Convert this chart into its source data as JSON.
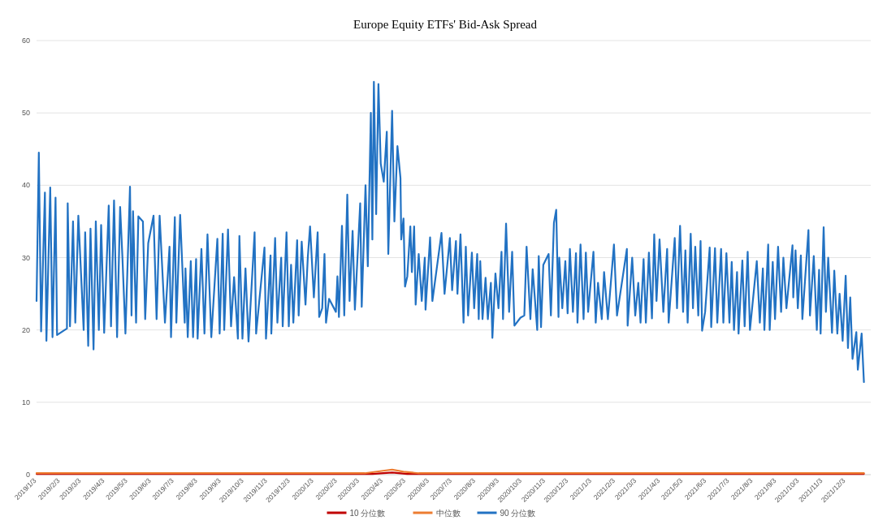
{
  "chart_data": {
    "type": "line",
    "title": "Europe Equity ETFs' Bid-Ask Spread",
    "xlim": [
      "2019-01-03",
      "2022-01-05"
    ],
    "xticks": [
      {
        "value": "2019-01-03",
        "label": "2019/1/3"
      },
      {
        "value": "2019-02-03",
        "label": "2019/2/3"
      },
      {
        "value": "2019-03-03",
        "label": "2019/3/3"
      },
      {
        "value": "2019-04-03",
        "label": "2019/4/3"
      },
      {
        "value": "2019-05-03",
        "label": "2019/5/3"
      },
      {
        "value": "2019-06-03",
        "label": "2019/6/3"
      },
      {
        "value": "2019-07-03",
        "label": "2019/7/3"
      },
      {
        "value": "2019-08-03",
        "label": "2019/8/3"
      },
      {
        "value": "2019-09-03",
        "label": "2019/9/3"
      },
      {
        "value": "2019-10-03",
        "label": "2019/10/3"
      },
      {
        "value": "2019-11-03",
        "label": "2019/11/3"
      },
      {
        "value": "2019-12-03",
        "label": "2019/12/3"
      },
      {
        "value": "2020-01-03",
        "label": "2020/1/3"
      },
      {
        "value": "2020-02-03",
        "label": "2020/2/3"
      },
      {
        "value": "2020-03-03",
        "label": "2020/3/3"
      },
      {
        "value": "2020-04-03",
        "label": "2020/4/3"
      },
      {
        "value": "2020-05-03",
        "label": "2020/5/3"
      },
      {
        "value": "2020-06-03",
        "label": "2020/6/3"
      },
      {
        "value": "2020-07-03",
        "label": "2020/7/3"
      },
      {
        "value": "2020-08-03",
        "label": "2020/8/3"
      },
      {
        "value": "2020-09-03",
        "label": "2020/9/3"
      },
      {
        "value": "2020-10-03",
        "label": "2020/10/3"
      },
      {
        "value": "2020-11-03",
        "label": "2020/11/3"
      },
      {
        "value": "2020-12-03",
        "label": "2020/12/3"
      },
      {
        "value": "2021-01-03",
        "label": "2021/1/3"
      },
      {
        "value": "2021-02-03",
        "label": "2021/2/3"
      },
      {
        "value": "2021-03-03",
        "label": "2021/3/3"
      },
      {
        "value": "2021-04-03",
        "label": "2021/4/3"
      },
      {
        "value": "2021-05-03",
        "label": "2021/5/3"
      },
      {
        "value": "2021-06-03",
        "label": "2021/6/3"
      },
      {
        "value": "2021-07-03",
        "label": "2021/7/3"
      },
      {
        "value": "2021-08-03",
        "label": "2021/8/3"
      },
      {
        "value": "2021-09-03",
        "label": "2021/9/3"
      },
      {
        "value": "2021-10-03",
        "label": "2021/10/3"
      },
      {
        "value": "2021-11-03",
        "label": "2021/11/3"
      },
      {
        "value": "2021-12-03",
        "label": "2021/12/3"
      }
    ],
    "ylim": [
      0,
      60
    ],
    "yticks": [
      0,
      10,
      20,
      30,
      40,
      50,
      60
    ],
    "grid": "y",
    "legend": "bottom",
    "series": [
      {
        "name": "10 分位數",
        "color": "#c00000",
        "x": [
          "2019-01-03",
          "2020-03-20",
          "2020-04-15",
          "2020-05-05",
          "2021-12-27"
        ],
        "values": [
          0.1,
          0.1,
          0.3,
          0.1,
          0.1
        ]
      },
      {
        "name": "中位數",
        "color": "#ed7d31",
        "x": [
          "2019-01-03",
          "2020-03-10",
          "2020-04-15",
          "2020-04-30",
          "2020-05-20",
          "2021-12-27"
        ],
        "values": [
          0.2,
          0.2,
          0.7,
          0.4,
          0.2,
          0.2
        ]
      },
      {
        "name": "90 分位數",
        "color": "#2272c3",
        "x": [
          "2019-01-03",
          "2019-01-06",
          "2019-01-09",
          "2019-01-14",
          "2019-01-16",
          "2019-01-21",
          "2019-01-24",
          "2019-01-28",
          "2019-01-30",
          "2019-02-12",
          "2019-02-13",
          "2019-02-16",
          "2019-02-20",
          "2019-02-23",
          "2019-02-27",
          "2019-03-06",
          "2019-03-08",
          "2019-03-12",
          "2019-03-15",
          "2019-03-19",
          "2019-03-22",
          "2019-03-26",
          "2019-03-29",
          "2019-04-02",
          "2019-04-08",
          "2019-04-11",
          "2019-04-15",
          "2019-04-19",
          "2019-04-23",
          "2019-04-26",
          "2019-04-30",
          "2019-05-06",
          "2019-05-08",
          "2019-05-10",
          "2019-05-14",
          "2019-05-17",
          "2019-05-23",
          "2019-05-26",
          "2019-05-30",
          "2019-06-06",
          "2019-06-10",
          "2019-06-14",
          "2019-06-21",
          "2019-06-27",
          "2019-06-29",
          "2019-07-04",
          "2019-07-06",
          "2019-07-11",
          "2019-07-17",
          "2019-07-18",
          "2019-07-21",
          "2019-07-25",
          "2019-07-28",
          "2019-08-01",
          "2019-08-03",
          "2019-08-08",
          "2019-08-12",
          "2019-08-16",
          "2019-08-21",
          "2019-08-29",
          "2019-09-01",
          "2019-09-05",
          "2019-09-07",
          "2019-09-12",
          "2019-09-16",
          "2019-09-20",
          "2019-09-25",
          "2019-09-27",
          "2019-10-01",
          "2019-10-05",
          "2019-10-09",
          "2019-10-17",
          "2019-10-19",
          "2019-10-30",
          "2019-11-01",
          "2019-11-07",
          "2019-11-08",
          "2019-11-13",
          "2019-11-16",
          "2019-11-21",
          "2019-11-23",
          "2019-11-28",
          "2019-12-01",
          "2019-12-04",
          "2019-12-07",
          "2019-12-12",
          "2019-12-14",
          "2019-12-18",
          "2019-12-23",
          "2019-12-26",
          "2019-12-29",
          "2020-01-03",
          "2020-01-08",
          "2020-01-10",
          "2020-01-14",
          "2020-01-17",
          "2020-01-19",
          "2020-01-23",
          "2020-02-01",
          "2020-02-03",
          "2020-02-05",
          "2020-02-09",
          "2020-02-12",
          "2020-02-16",
          "2020-02-19",
          "2020-02-23",
          "2020-02-26",
          "2020-03-04",
          "2020-03-06",
          "2020-03-11",
          "2020-03-14",
          "2020-03-18",
          "2020-03-20",
          "2020-03-22",
          "2020-03-25",
          "2020-03-28",
          "2020-03-31",
          "2020-04-04",
          "2020-04-08",
          "2020-04-10",
          "2020-04-15",
          "2020-04-18",
          "2020-04-22",
          "2020-04-26",
          "2020-04-27",
          "2020-04-30",
          "2020-05-02",
          "2020-05-05",
          "2020-05-09",
          "2020-05-11",
          "2020-05-14",
          "2020-05-16",
          "2020-05-20",
          "2020-05-24",
          "2020-05-28",
          "2020-05-29",
          "2020-06-04",
          "2020-06-07",
          "2020-06-19",
          "2020-06-23",
          "2020-06-30",
          "2020-07-03",
          "2020-07-08",
          "2020-07-10",
          "2020-07-14",
          "2020-07-18",
          "2020-07-21",
          "2020-07-24",
          "2020-07-29",
          "2020-08-01",
          "2020-08-05",
          "2020-08-07",
          "2020-08-09",
          "2020-08-12",
          "2020-08-16",
          "2020-08-19",
          "2020-08-23",
          "2020-08-25",
          "2020-08-29",
          "2020-09-02",
          "2020-09-06",
          "2020-09-08",
          "2020-09-12",
          "2020-09-16",
          "2020-09-20",
          "2020-09-23",
          "2020-10-01",
          "2020-10-06",
          "2020-10-09",
          "2020-10-14",
          "2020-10-17",
          "2020-10-23",
          "2020-10-25",
          "2020-10-28",
          "2020-10-31",
          "2020-11-07",
          "2020-11-10",
          "2020-11-14",
          "2020-11-17",
          "2020-11-20",
          "2020-11-21",
          "2020-11-25",
          "2020-11-29",
          "2020-12-02",
          "2020-12-05",
          "2020-12-09",
          "2020-12-13",
          "2020-12-15",
          "2020-12-19",
          "2020-12-23",
          "2020-12-26",
          "2020-12-29",
          "2021-01-05",
          "2021-01-08",
          "2021-01-11",
          "2021-01-16",
          "2021-01-19",
          "2021-01-24",
          "2021-02-01",
          "2021-02-05",
          "2021-02-18",
          "2021-02-19",
          "2021-02-25",
          "2021-03-01",
          "2021-03-05",
          "2021-03-08",
          "2021-03-12",
          "2021-03-15",
          "2021-03-19",
          "2021-03-23",
          "2021-03-26",
          "2021-03-29",
          "2021-04-02",
          "2021-04-07",
          "2021-04-12",
          "2021-04-14",
          "2021-04-22",
          "2021-04-25",
          "2021-04-29",
          "2021-05-03",
          "2021-05-06",
          "2021-05-09",
          "2021-05-13",
          "2021-05-16",
          "2021-05-19",
          "2021-05-23",
          "2021-05-26",
          "2021-05-28",
          "2021-06-01",
          "2021-06-07",
          "2021-06-09",
          "2021-06-14",
          "2021-06-17",
          "2021-06-22",
          "2021-06-25",
          "2021-06-29",
          "2021-07-03",
          "2021-07-06",
          "2021-07-09",
          "2021-07-13",
          "2021-07-15",
          "2021-07-20",
          "2021-07-23",
          "2021-07-27",
          "2021-07-30",
          "2021-08-08",
          "2021-08-12",
          "2021-08-16",
          "2021-08-18",
          "2021-08-23",
          "2021-08-25",
          "2021-08-29",
          "2021-09-01",
          "2021-09-05",
          "2021-09-09",
          "2021-09-12",
          "2021-09-16",
          "2021-09-24",
          "2021-09-25",
          "2021-09-28",
          "2021-10-01",
          "2021-10-05",
          "2021-10-07",
          "2021-10-15",
          "2021-10-17",
          "2021-10-22",
          "2021-10-26",
          "2021-10-29",
          "2021-10-31",
          "2021-11-04",
          "2021-11-07",
          "2021-11-10",
          "2021-11-15",
          "2021-11-18",
          "2021-11-22",
          "2021-11-25",
          "2021-11-29",
          "2021-12-03",
          "2021-12-06",
          "2021-12-09",
          "2021-12-12",
          "2021-12-17",
          "2021-12-19",
          "2021-12-24",
          "2021-12-27"
        ],
        "values": [
          24,
          44.5,
          19.8,
          39,
          18.5,
          39.7,
          19,
          38.3,
          19.3,
          20.2,
          37.5,
          20.5,
          35,
          21,
          35.8,
          20,
          33.5,
          17.8,
          34,
          17.3,
          35,
          20,
          34.5,
          19.6,
          37.2,
          20.5,
          37.9,
          19,
          37,
          30.1,
          19.5,
          39.8,
          22,
          36.4,
          21,
          35.7,
          35,
          21.5,
          32,
          35.8,
          21.5,
          35.8,
          21,
          31.5,
          19,
          35.6,
          21,
          35.9,
          21,
          28.5,
          19,
          29.5,
          19,
          29.8,
          18.8,
          31.2,
          19.5,
          33.2,
          19,
          32.6,
          19.5,
          33.3,
          20,
          33.9,
          20.5,
          27.3,
          18.8,
          33,
          18.8,
          28.5,
          18.4,
          33.5,
          19.5,
          31.4,
          18.8,
          30.3,
          19.5,
          32.7,
          21,
          30,
          20.5,
          33.5,
          20.5,
          29,
          21,
          32.4,
          22,
          32.2,
          23.5,
          30,
          34.3,
          24.5,
          33.5,
          21.8,
          23,
          30.5,
          21,
          24.3,
          22.5,
          27.4,
          21.8,
          34.4,
          22,
          38.7,
          24,
          33.7,
          22.8,
          37.5,
          23.2,
          40,
          28.8,
          50,
          32.5,
          54.3,
          36,
          54,
          43,
          40.5,
          47.4,
          30.5,
          50.3,
          35,
          45.4,
          41,
          32.5,
          35.4,
          26,
          27.4,
          34.3,
          28,
          34.3,
          23.5,
          30.5,
          24,
          30,
          22.8,
          32.8,
          24,
          33.4,
          25,
          32.7,
          25.5,
          32.3,
          25,
          33.2,
          21,
          31.5,
          22,
          30.7,
          23,
          30.5,
          21.5,
          29.5,
          21.5,
          27.2,
          21.5,
          26.5,
          18.9,
          27.8,
          23,
          30.8,
          21.5,
          34.7,
          22.5,
          30.8,
          20.6,
          21.7,
          22,
          31.5,
          21.5,
          28.4,
          20,
          30.2,
          20.4,
          29,
          30.5,
          22,
          34.8,
          36.6,
          21.8,
          30,
          23,
          29.5,
          22.3,
          31.2,
          22.5,
          30.6,
          21,
          31.8,
          21.5,
          30.7,
          22.5,
          30.8,
          21,
          26.5,
          21.5,
          28,
          21.5,
          31.8,
          22,
          31.2,
          20.6,
          30,
          22,
          26.5,
          21,
          29.8,
          21,
          30.7,
          21.6,
          33.2,
          24,
          32.5,
          22.5,
          31.2,
          21,
          32.7,
          23,
          34.4,
          22.5,
          31,
          21,
          33.3,
          23,
          31.5,
          22,
          32.3,
          19.9,
          22.5,
          31.4,
          20.4,
          31.3,
          21,
          31.2,
          21,
          30.6,
          21,
          29.4,
          20,
          28,
          19.5,
          29.6,
          20.5,
          30.8,
          20,
          29.5,
          21,
          28.5,
          20,
          31.8,
          20,
          29.4,
          21.5,
          31.5,
          22.5,
          30,
          23,
          31.7,
          24.5,
          31,
          23,
          30.3,
          21.5,
          33.8,
          22,
          30.2,
          20,
          28.3,
          19.5,
          34.2,
          22.5,
          30,
          19.6,
          28.2,
          19.5,
          25,
          18.5,
          27.5,
          17.5,
          24.5,
          16,
          19.7,
          14.5,
          19.5,
          12.8
        ]
      }
    ]
  }
}
